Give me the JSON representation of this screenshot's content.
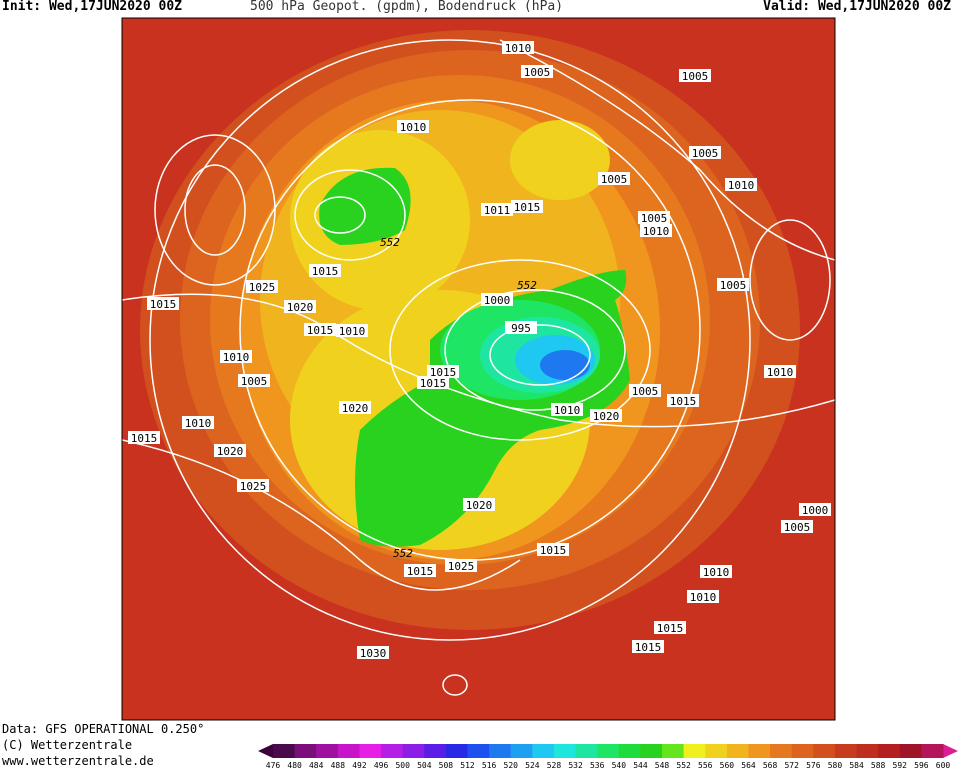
{
  "header": {
    "init": "Init: Wed,17JUN2020 00Z",
    "title": "500 hPa Geopot. (gpdm), Bodendruck (hPa)",
    "valid": "Valid: Wed,17JUN2020 00Z"
  },
  "footer": {
    "data": "Data: GFS OPERATIONAL 0.250°",
    "copyright": "(C) Wetterzentrale",
    "url": "www.wetterzentrale.de"
  },
  "colorbar": {
    "labels": [
      476,
      480,
      484,
      488,
      492,
      496,
      500,
      504,
      508,
      512,
      516,
      520,
      524,
      528,
      532,
      536,
      540,
      544,
      548,
      552,
      556,
      560,
      564,
      568,
      572,
      576,
      580,
      584,
      588,
      592,
      596,
      600
    ],
    "colors": [
      "#4b0a4b",
      "#7a0f7a",
      "#a010a0",
      "#c814c8",
      "#e61ee6",
      "#b41ee6",
      "#8c1ee6",
      "#5a1ee6",
      "#2828e6",
      "#1e50f0",
      "#1e78f0",
      "#1ea0f0",
      "#1ec8f0",
      "#1ee6dc",
      "#1ee6a0",
      "#1ee664",
      "#1edc3c",
      "#28d21e",
      "#64e61e",
      "#f0f01e",
      "#f0d21e",
      "#f0b41e",
      "#f0961e",
      "#e6781e",
      "#dc641e",
      "#d2501e",
      "#c83c1e",
      "#be2d1e",
      "#b41e1e",
      "#a01428",
      "#b4145a"
    ]
  },
  "isobar_labels": [
    1010,
    1005,
    1005,
    1010,
    1005,
    1005,
    1010,
    1011,
    1015,
    1005,
    1010,
    1015,
    1025,
    1005,
    1015,
    1020,
    1000,
    1015,
    1010,
    995,
    1010,
    1015,
    1015,
    1005,
    1010,
    1005,
    1015,
    1020,
    1010,
    1020,
    1010,
    1015,
    1020,
    1025,
    1020,
    1000,
    1005,
    1015,
    1015,
    1025,
    1010,
    1010,
    1015,
    1015,
    1030
  ],
  "height_labels": [
    552,
    552,
    552
  ]
}
